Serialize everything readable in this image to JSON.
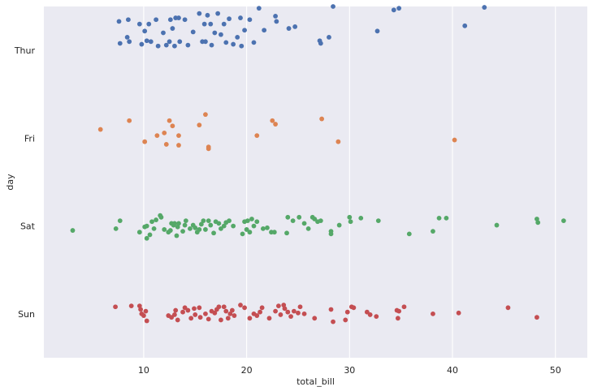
{
  "chart_data": {
    "type": "scatter",
    "subtype": "strip",
    "orientation": "horizontal",
    "title": "",
    "xlabel": "total_bill",
    "ylabel": "day",
    "xlim": [
      0.3,
      53.1
    ],
    "x_ticks": [
      10,
      20,
      30,
      40,
      50
    ],
    "categories": [
      "Thur",
      "Fri",
      "Sat",
      "Sun"
    ],
    "grid": "vertical",
    "style": {
      "background": "#eaeaf2",
      "grid_color": "#ffffff",
      "text_color": "#262626"
    },
    "series": [
      {
        "category": "Thur",
        "color": "#4c72b0",
        "points": [
          [
            7.6,
            0.33
          ],
          [
            7.7,
            0.08
          ],
          [
            8.4,
            0.15
          ],
          [
            8.5,
            0.35
          ],
          [
            8.6,
            0.1
          ],
          [
            9.6,
            0.3
          ],
          [
            9.8,
            0.07
          ],
          [
            10.1,
            0.22
          ],
          [
            10.3,
            0.11
          ],
          [
            10.5,
            0.3
          ],
          [
            10.7,
            0.1
          ],
          [
            11.2,
            0.35
          ],
          [
            11.4,
            0.05
          ],
          [
            11.9,
            0.2
          ],
          [
            12.2,
            0.06
          ],
          [
            12.5,
            0.1
          ],
          [
            12.6,
            0.35
          ],
          [
            12.8,
            0.25
          ],
          [
            13.0,
            0.05
          ],
          [
            13.1,
            0.37
          ],
          [
            13.4,
            0.37
          ],
          [
            13.5,
            0.1
          ],
          [
            14.0,
            0.35
          ],
          [
            14.3,
            0.06
          ],
          [
            14.8,
            0.21
          ],
          [
            15.4,
            0.42
          ],
          [
            15.7,
            0.1
          ],
          [
            15.9,
            0.3
          ],
          [
            16.0,
            0.1
          ],
          [
            16.2,
            0.4
          ],
          [
            16.5,
            0.3
          ],
          [
            16.6,
            0.06
          ],
          [
            16.9,
            0.2
          ],
          [
            17.2,
            0.42
          ],
          [
            17.5,
            0.18
          ],
          [
            17.8,
            0.3
          ],
          [
            18.0,
            0.09
          ],
          [
            18.3,
            0.36
          ],
          [
            18.7,
            0.07
          ],
          [
            19.1,
            0.15
          ],
          [
            19.4,
            0.37
          ],
          [
            19.5,
            0.05
          ],
          [
            19.8,
            0.23
          ],
          [
            20.3,
            0.35
          ],
          [
            20.7,
            0.09
          ],
          [
            21.2,
            0.48
          ],
          [
            21.7,
            0.23
          ],
          [
            22.8,
            0.39
          ],
          [
            22.9,
            0.33
          ],
          [
            24.1,
            0.25
          ],
          [
            24.7,
            0.27
          ],
          [
            27.1,
            0.11
          ],
          [
            27.2,
            0.08
          ],
          [
            28.0,
            0.15
          ],
          [
            28.4,
            0.5
          ],
          [
            32.7,
            0.22
          ],
          [
            34.3,
            0.46
          ],
          [
            34.8,
            0.48
          ],
          [
            41.2,
            0.28
          ],
          [
            43.1,
            0.49
          ]
        ]
      },
      {
        "category": "Fri",
        "color": "#dd8452",
        "points": [
          [
            5.8,
            0.1
          ],
          [
            8.6,
            0.2
          ],
          [
            10.1,
            -0.04
          ],
          [
            11.3,
            0.03
          ],
          [
            12.0,
            0.06
          ],
          [
            12.2,
            -0.07
          ],
          [
            12.5,
            0.2
          ],
          [
            12.8,
            0.14
          ],
          [
            13.4,
            -0.08
          ],
          [
            13.4,
            0.03
          ],
          [
            15.4,
            0.15
          ],
          [
            16.0,
            0.27
          ],
          [
            16.3,
            -0.1
          ],
          [
            16.3,
            -0.12
          ],
          [
            21.0,
            0.03
          ],
          [
            22.5,
            0.2
          ],
          [
            22.8,
            0.16
          ],
          [
            27.3,
            0.22
          ],
          [
            28.9,
            -0.04
          ],
          [
            40.2,
            -0.02
          ]
        ]
      },
      {
        "category": "Sat",
        "color": "#55a868",
        "points": [
          [
            3.1,
            -0.05
          ],
          [
            7.3,
            -0.03
          ],
          [
            7.7,
            0.06
          ],
          [
            9.6,
            -0.07
          ],
          [
            10.1,
            -0.01
          ],
          [
            10.3,
            0.0
          ],
          [
            10.3,
            -0.14
          ],
          [
            10.6,
            -0.1
          ],
          [
            10.8,
            0.05
          ],
          [
            11.0,
            -0.03
          ],
          [
            11.2,
            0.07
          ],
          [
            11.6,
            0.12
          ],
          [
            11.7,
            0.1
          ],
          [
            12.0,
            -0.04
          ],
          [
            12.4,
            -0.07
          ],
          [
            12.6,
            -0.05
          ],
          [
            12.7,
            0.03
          ],
          [
            12.9,
            0.01
          ],
          [
            13.0,
            0.03
          ],
          [
            13.2,
            -0.11
          ],
          [
            13.3,
            -0.01
          ],
          [
            13.4,
            0.03
          ],
          [
            13.8,
            -0.06
          ],
          [
            14.0,
            0.01
          ],
          [
            14.1,
            0.06
          ],
          [
            14.5,
            -0.03
          ],
          [
            14.8,
            0.01
          ],
          [
            15.0,
            -0.02
          ],
          [
            15.2,
            -0.07
          ],
          [
            15.4,
            -0.04
          ],
          [
            15.6,
            0.02
          ],
          [
            15.8,
            0.06
          ],
          [
            16.0,
            -0.04
          ],
          [
            16.3,
            0.06
          ],
          [
            16.5,
            0.01
          ],
          [
            16.8,
            -0.08
          ],
          [
            17.0,
            0.05
          ],
          [
            17.3,
            0.03
          ],
          [
            17.5,
            -0.03
          ],
          [
            17.8,
            0.0
          ],
          [
            18.0,
            0.04
          ],
          [
            18.3,
            0.06
          ],
          [
            18.7,
            0.0
          ],
          [
            19.6,
            -0.09
          ],
          [
            19.8,
            0.05
          ],
          [
            20.0,
            -0.04
          ],
          [
            20.1,
            0.06
          ],
          [
            20.3,
            -0.07
          ],
          [
            20.5,
            0.08
          ],
          [
            20.7,
            0.0
          ],
          [
            21.0,
            0.05
          ],
          [
            21.6,
            -0.03
          ],
          [
            22.0,
            -0.02
          ],
          [
            22.4,
            -0.07
          ],
          [
            22.7,
            -0.07
          ],
          [
            23.9,
            -0.08
          ],
          [
            24.0,
            0.1
          ],
          [
            24.5,
            0.06
          ],
          [
            25.1,
            0.1
          ],
          [
            25.6,
            0.03
          ],
          [
            26.0,
            -0.03
          ],
          [
            26.4,
            0.1
          ],
          [
            26.6,
            0.08
          ],
          [
            26.9,
            0.05
          ],
          [
            27.2,
            0.06
          ],
          [
            28.2,
            -0.06
          ],
          [
            28.2,
            -0.09
          ],
          [
            29.0,
            0.01
          ],
          [
            30.0,
            0.1
          ],
          [
            30.1,
            0.05
          ],
          [
            31.1,
            0.09
          ],
          [
            32.8,
            0.06
          ],
          [
            35.8,
            -0.09
          ],
          [
            38.1,
            -0.06
          ],
          [
            38.7,
            0.09
          ],
          [
            39.4,
            0.09
          ],
          [
            44.3,
            0.01
          ],
          [
            48.2,
            0.08
          ],
          [
            48.3,
            0.04
          ],
          [
            50.8,
            0.06
          ]
        ]
      },
      {
        "category": "Sun",
        "color": "#c44e52",
        "points": [
          [
            7.25,
            0.08
          ],
          [
            8.8,
            0.09
          ],
          [
            9.6,
            0.09
          ],
          [
            9.7,
            0.05
          ],
          [
            9.8,
            0.0
          ],
          [
            10.0,
            -0.02
          ],
          [
            10.2,
            0.03
          ],
          [
            10.3,
            -0.08
          ],
          [
            12.4,
            -0.02
          ],
          [
            12.7,
            -0.04
          ],
          [
            13.0,
            -0.01
          ],
          [
            13.1,
            0.04
          ],
          [
            13.3,
            -0.07
          ],
          [
            13.8,
            0.02
          ],
          [
            14.0,
            0.07
          ],
          [
            14.3,
            0.04
          ],
          [
            14.6,
            -0.05
          ],
          [
            14.9,
            0.06
          ],
          [
            15.0,
            -0.01
          ],
          [
            15.4,
            0.07
          ],
          [
            15.5,
            -0.04
          ],
          [
            16.0,
            0.0
          ],
          [
            16.3,
            -0.06
          ],
          [
            16.6,
            0.03
          ],
          [
            16.9,
            0.01
          ],
          [
            17.1,
            0.05
          ],
          [
            17.3,
            0.08
          ],
          [
            17.5,
            -0.07
          ],
          [
            17.8,
            0.08
          ],
          [
            18.0,
            0.03
          ],
          [
            18.2,
            -0.05
          ],
          [
            18.4,
            0.0
          ],
          [
            18.6,
            0.04
          ],
          [
            18.8,
            -0.02
          ],
          [
            19.4,
            0.1
          ],
          [
            19.8,
            0.07
          ],
          [
            20.3,
            -0.05
          ],
          [
            20.7,
            0.0
          ],
          [
            21.0,
            -0.02
          ],
          [
            21.3,
            0.02
          ],
          [
            21.5,
            0.07
          ],
          [
            22.2,
            -0.05
          ],
          [
            22.8,
            0.03
          ],
          [
            23.1,
            0.09
          ],
          [
            23.3,
            -0.01
          ],
          [
            23.6,
            0.1
          ],
          [
            23.7,
            0.06
          ],
          [
            24.0,
            0.02
          ],
          [
            24.3,
            -0.03
          ],
          [
            24.6,
            0.03
          ],
          [
            25.0,
            0.01
          ],
          [
            25.2,
            0.08
          ],
          [
            25.6,
            0.0
          ],
          [
            26.6,
            -0.05
          ],
          [
            28.2,
            0.05
          ],
          [
            28.4,
            -0.09
          ],
          [
            29.6,
            -0.07
          ],
          [
            29.8,
            0.02
          ],
          [
            30.2,
            0.08
          ],
          [
            30.4,
            0.07
          ],
          [
            31.7,
            0.02
          ],
          [
            32.0,
            -0.01
          ],
          [
            32.6,
            -0.03
          ],
          [
            34.6,
            0.04
          ],
          [
            34.7,
            -0.05
          ],
          [
            34.8,
            0.03
          ],
          [
            35.3,
            0.08
          ],
          [
            38.1,
            0.0
          ],
          [
            40.6,
            0.01
          ],
          [
            45.4,
            0.07
          ],
          [
            48.2,
            -0.04
          ]
        ]
      }
    ]
  }
}
